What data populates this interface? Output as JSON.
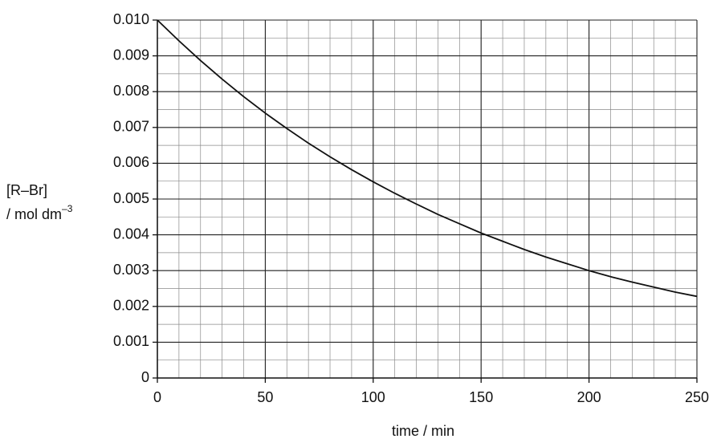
{
  "chart_data": {
    "type": "line",
    "xlabel": "time / min",
    "ylabel": [
      "[R–Br]",
      "/ mol dm"
    ],
    "ylabel_superscript": "–3",
    "x": [
      0,
      10,
      20,
      30,
      40,
      50,
      60,
      70,
      80,
      90,
      100,
      110,
      120,
      130,
      140,
      150,
      160,
      170,
      180,
      190,
      200,
      210,
      220,
      230,
      240,
      250
    ],
    "series": [
      {
        "color": "#111111",
        "values": [
          0.01,
          0.00942,
          0.00887,
          0.00835,
          0.00786,
          0.0074,
          0.00697,
          0.00656,
          0.00618,
          0.00582,
          0.00548,
          0.00516,
          0.00486,
          0.00457,
          0.00431,
          0.00405,
          0.00382,
          0.00359,
          0.00338,
          0.00319,
          0.003,
          0.00283,
          0.00268,
          0.00254,
          0.0024,
          0.00228
        ]
      }
    ],
    "xlim": [
      0,
      250
    ],
    "xticks": [
      0,
      50,
      100,
      150,
      200,
      250
    ],
    "ylim": [
      0,
      0.01
    ],
    "yticks": [
      0,
      0.001,
      0.002,
      0.003,
      0.004,
      0.005,
      0.006,
      0.007,
      0.008,
      0.009,
      {
        "value": 0.01,
        "label": "0.010"
      }
    ],
    "grid": true,
    "minor_grid": {
      "x": 10,
      "y": 0.0005
    }
  }
}
